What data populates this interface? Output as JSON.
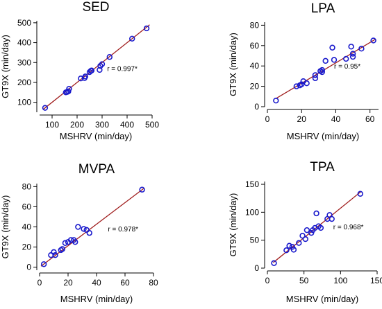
{
  "colors": {
    "points": "#1a1acc",
    "fit_line": "#a01e1e",
    "axis": "#000000"
  },
  "chart_data": [
    {
      "type": "scatter",
      "title": "SED",
      "xlabel": "MSHRV (min/day)",
      "ylabel": "GT9X (min/day)",
      "xlim": [
        50,
        500
      ],
      "ylim": [
        50,
        510
      ],
      "xticks": [
        100,
        200,
        300,
        400,
        500
      ],
      "yticks": [
        100,
        200,
        300,
        400,
        500
      ],
      "annotation": "r = 0.997*",
      "fit_line": [
        [
          65,
          65
        ],
        [
          490,
          490
        ]
      ],
      "points": [
        [
          72,
          72
        ],
        [
          155,
          150
        ],
        [
          160,
          152
        ],
        [
          165,
          155
        ],
        [
          168,
          168
        ],
        [
          215,
          220
        ],
        [
          230,
          222
        ],
        [
          233,
          230
        ],
        [
          250,
          252
        ],
        [
          255,
          258
        ],
        [
          258,
          260
        ],
        [
          290,
          263
        ],
        [
          293,
          283
        ],
        [
          300,
          292
        ],
        [
          330,
          328
        ],
        [
          420,
          420
        ],
        [
          478,
          472
        ]
      ]
    },
    {
      "type": "scatter",
      "title": "LPA",
      "xlabel": "MSHRV (min/day)",
      "ylabel": "GT9X (min/day)",
      "xlim": [
        0,
        65
      ],
      "ylim": [
        0,
        83
      ],
      "xticks": [
        0,
        20,
        40,
        60
      ],
      "yticks": [
        0,
        20,
        40,
        60,
        80
      ],
      "annotation": "r = 0.95*",
      "fit_line": [
        [
          5,
          8
        ],
        [
          63,
          66
        ]
      ],
      "points": [
        [
          5,
          6
        ],
        [
          17,
          20
        ],
        [
          19,
          21
        ],
        [
          20,
          22
        ],
        [
          21,
          25
        ],
        [
          23,
          23
        ],
        [
          28,
          31
        ],
        [
          28,
          28
        ],
        [
          31,
          35
        ],
        [
          32,
          36
        ],
        [
          32,
          34
        ],
        [
          34,
          45
        ],
        [
          38,
          58
        ],
        [
          39,
          46
        ],
        [
          46,
          47
        ],
        [
          49,
          59
        ],
        [
          50,
          49
        ],
        [
          50,
          52
        ],
        [
          55,
          57
        ],
        [
          62,
          65
        ]
      ]
    },
    {
      "type": "scatter",
      "title": "MVPA",
      "xlabel": "MSHRV (min/day)",
      "ylabel": "GT9X (min/day)",
      "xlim": [
        0,
        80
      ],
      "ylim": [
        -3,
        83
      ],
      "xticks": [
        0,
        20,
        40,
        60,
        80
      ],
      "yticks": [
        0,
        20,
        40,
        60,
        80
      ],
      "annotation": "r = 0.978*",
      "fit_line": [
        [
          1,
          1
        ],
        [
          73,
          78
        ]
      ],
      "points": [
        [
          3,
          3
        ],
        [
          8,
          12
        ],
        [
          10,
          15
        ],
        [
          11,
          12
        ],
        [
          15,
          17
        ],
        [
          16,
          18
        ],
        [
          18,
          24
        ],
        [
          20,
          25
        ],
        [
          22,
          27
        ],
        [
          24,
          27
        ],
        [
          25,
          25
        ],
        [
          27,
          40
        ],
        [
          31,
          38
        ],
        [
          33,
          37
        ],
        [
          35,
          34
        ],
        [
          72,
          77
        ]
      ]
    },
    {
      "type": "scatter",
      "title": "TPA",
      "xlabel": "MSHRV (min/day)",
      "ylabel": "GT9X (min/day)",
      "xlim": [
        0,
        150
      ],
      "ylim": [
        0,
        155
      ],
      "xticks": [
        0,
        50,
        100,
        150
      ],
      "yticks": [
        0,
        50,
        100,
        150
      ],
      "annotation": "r = 0.968*",
      "fit_line": [
        [
          8,
          10
        ],
        [
          128,
          137
        ]
      ],
      "points": [
        [
          9,
          9
        ],
        [
          26,
          32
        ],
        [
          30,
          40
        ],
        [
          34,
          38
        ],
        [
          36,
          33
        ],
        [
          43,
          45
        ],
        [
          48,
          58
        ],
        [
          52,
          52
        ],
        [
          54,
          68
        ],
        [
          60,
          63
        ],
        [
          62,
          68
        ],
        [
          65,
          72
        ],
        [
          67,
          98
        ],
        [
          70,
          75
        ],
        [
          73,
          72
        ],
        [
          82,
          88
        ],
        [
          85,
          95
        ],
        [
          88,
          88
        ],
        [
          127,
          133
        ]
      ]
    }
  ]
}
